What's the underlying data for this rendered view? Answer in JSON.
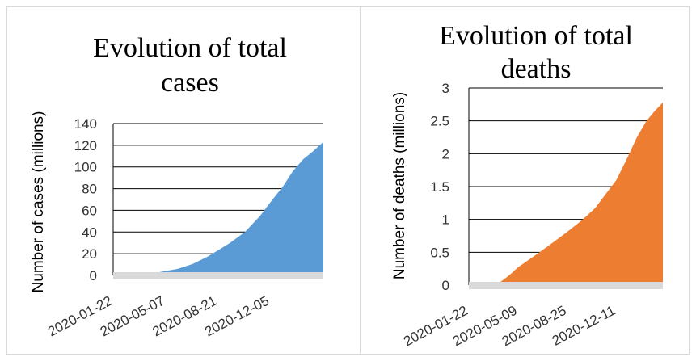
{
  "chart_data": [
    {
      "type": "area",
      "title": [
        "Evolution of total",
        "cases"
      ],
      "xlabel": "",
      "ylabel": "Number of cases (millions)",
      "ylim": [
        0,
        140
      ],
      "yticks": [
        0,
        20,
        40,
        60,
        80,
        100,
        120,
        140
      ],
      "x_tick_labels": [
        "2020-01-22",
        "2020-05-07",
        "2020-08-21",
        "2020-12-05"
      ],
      "grid": true,
      "color": "#5b9bd5",
      "series": [
        {
          "x": [
            "2020-01-22",
            "2020-02-15",
            "2020-03-15",
            "2020-04-15",
            "2020-05-07",
            "2020-06-01",
            "2020-07-01",
            "2020-08-01",
            "2020-08-21",
            "2020-09-15",
            "2020-10-15",
            "2020-11-15",
            "2020-12-05",
            "2020-12-31",
            "2021-01-20",
            "2021-02-10",
            "2021-03-01",
            "2021-03-23"
          ],
          "y": [
            0,
            0.1,
            0.3,
            2.2,
            4,
            6,
            10.5,
            17.5,
            23,
            30,
            40,
            55,
            67,
            82,
            96,
            107,
            114,
            123
          ]
        }
      ]
    },
    {
      "type": "area",
      "title": [
        "Evolution of total",
        "deaths"
      ],
      "xlabel": "",
      "ylabel": "Number of deaths (millions)",
      "ylim": [
        0,
        3
      ],
      "yticks": [
        "0",
        "0.5",
        "1",
        "1.5",
        "2",
        "2.5",
        "3"
      ],
      "x_tick_labels": [
        "2020-01-22",
        "2020-05-09",
        "2020-08-25",
        "2020-12-11"
      ],
      "grid": true,
      "color": "#ed7d31",
      "series": [
        {
          "x": [
            "2020-01-22",
            "2020-02-15",
            "2020-03-10",
            "2020-04-01",
            "2020-04-20",
            "2020-05-09",
            "2020-06-15",
            "2020-07-15",
            "2020-08-25",
            "2020-09-25",
            "2020-10-25",
            "2020-12-11",
            "2021-01-05",
            "2021-01-25",
            "2021-02-15",
            "2021-03-05",
            "2021-03-23"
          ],
          "y": [
            0,
            0,
            0,
            0.05,
            0.15,
            0.27,
            0.45,
            0.6,
            0.81,
            0.98,
            1.17,
            1.6,
            1.95,
            2.25,
            2.5,
            2.65,
            2.78
          ]
        }
      ]
    }
  ]
}
